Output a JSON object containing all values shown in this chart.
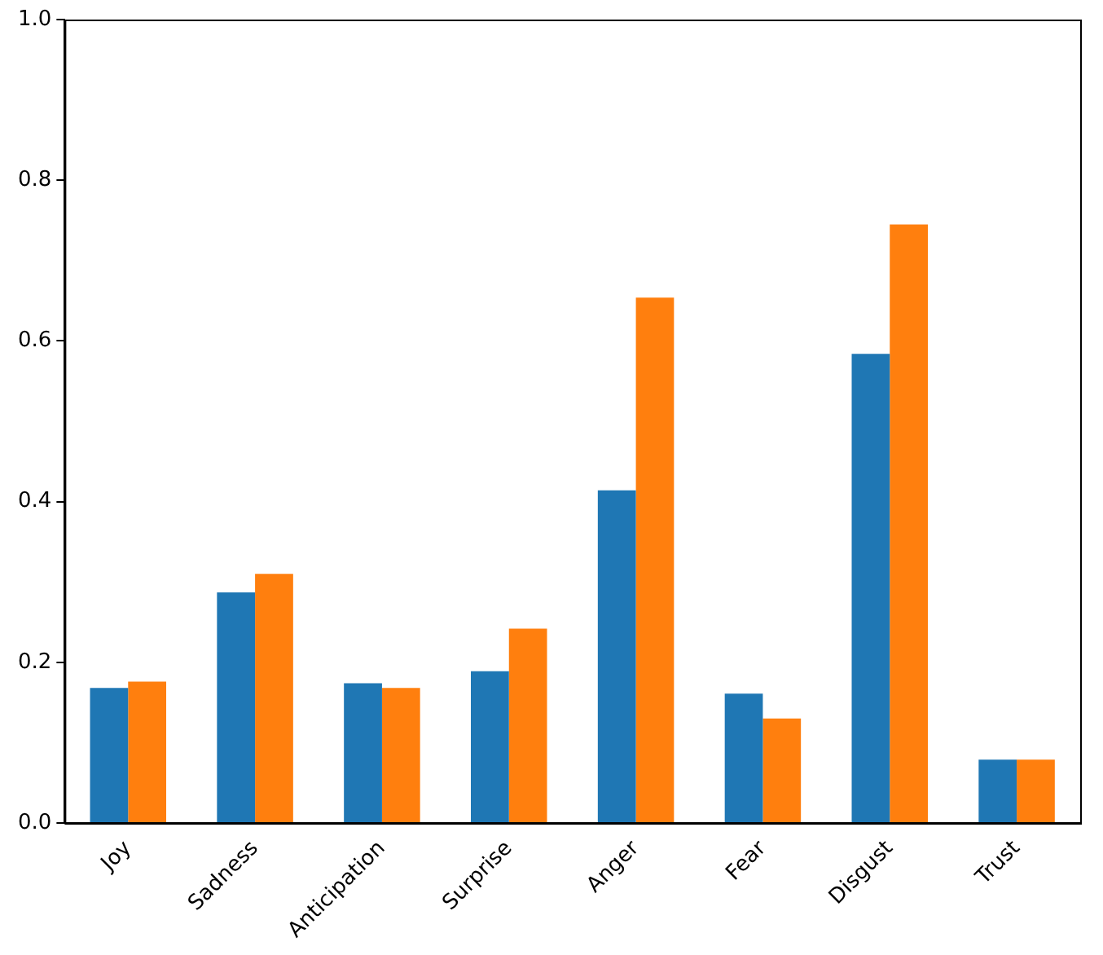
{
  "chart_data": {
    "type": "bar",
    "categories": [
      "Joy",
      "Sadness",
      "Anticipation",
      "Surprise",
      "Anger",
      "Fear",
      "Disgust",
      "Trust"
    ],
    "series": [
      {
        "color": "#1f77b4",
        "values": [
          0.168,
          0.287,
          0.174,
          0.189,
          0.414,
          0.161,
          0.584,
          0.079
        ]
      },
      {
        "color": "#ff7f0e",
        "values": [
          0.176,
          0.31,
          0.168,
          0.242,
          0.654,
          0.13,
          0.745,
          0.079
        ]
      }
    ],
    "ylim": [
      0,
      1
    ],
    "yticks": [
      {
        "value": 0,
        "label": "0.0"
      },
      {
        "value": 0.2,
        "label": "0.2"
      },
      {
        "value": 0.4,
        "label": "0.4"
      },
      {
        "value": 0.6,
        "label": "0.6"
      },
      {
        "value": 0.8,
        "label": "0.8"
      },
      {
        "value": 1,
        "label": "1.0"
      }
    ],
    "grid": false,
    "legend": false
  }
}
